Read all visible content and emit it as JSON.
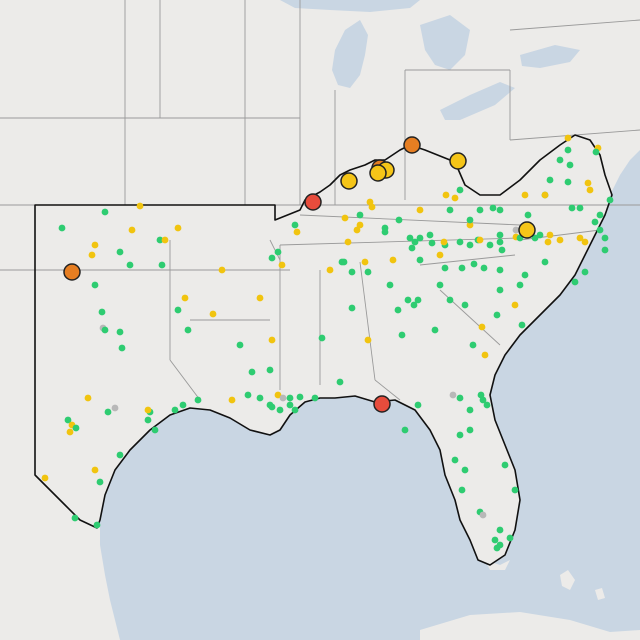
{
  "map": {
    "style": "light gray basemap",
    "colors": {
      "water": "#c9d6e3",
      "land": "#ecebe9",
      "state_line": "#9a9a9a",
      "region_line": "#111111"
    },
    "point_categories": [
      {
        "id": "green",
        "color": "#2ecc71",
        "size": "small"
      },
      {
        "id": "yellow",
        "color": "#f1c40f",
        "size": "small"
      },
      {
        "id": "gray",
        "color": "#b8b8b8",
        "size": "small"
      },
      {
        "id": "yellow-large",
        "color": "#f5c518",
        "size": "large"
      },
      {
        "id": "orange-large",
        "color": "#e67e22",
        "size": "large"
      },
      {
        "id": "red-large",
        "color": "#e74c3c",
        "size": "large"
      }
    ]
  }
}
